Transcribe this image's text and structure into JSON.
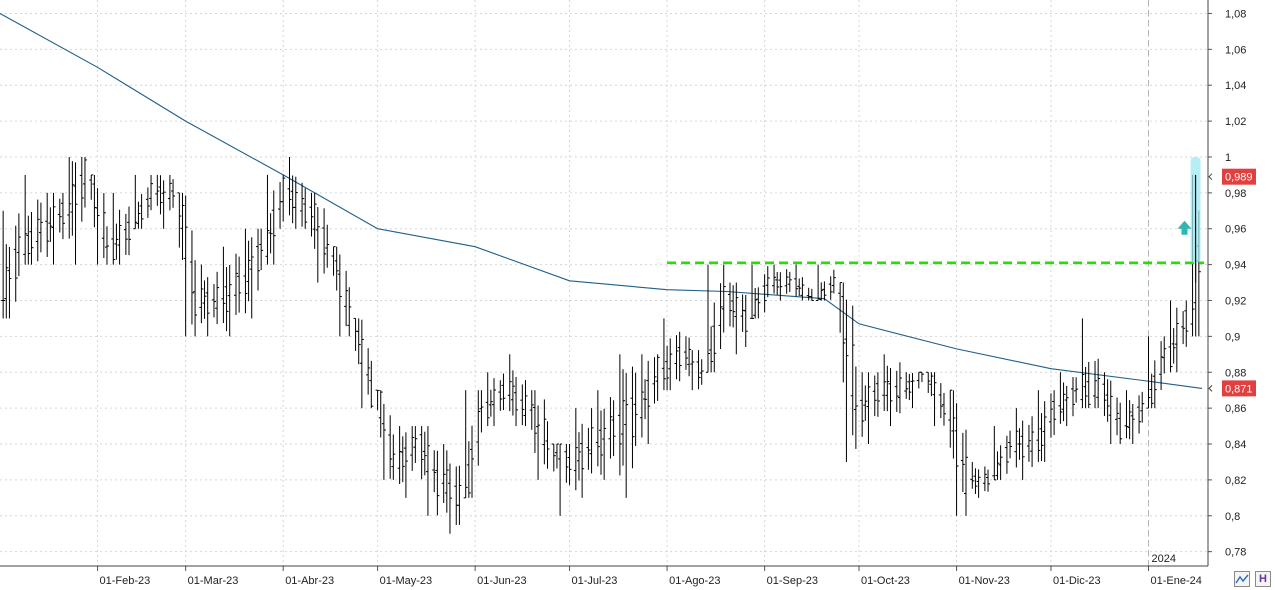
{
  "chart_data": {
    "type": "ohlc",
    "title": "",
    "xlabel": "",
    "ylabel": "",
    "ylim": [
      0.77,
      1.09
    ],
    "y_ticks": [
      "0,78",
      "0,8",
      "0,82",
      "0,84",
      "0,86",
      "0,88",
      "0,9",
      "0,92",
      "0,94",
      "0,96",
      "0,98",
      "1",
      "1,02",
      "1,04",
      "1,06",
      "1,08"
    ],
    "x_ticks": [
      "01-Feb-23",
      "01-Mar-23",
      "01-Abr-23",
      "01-May-23",
      "01-Jun-23",
      "01-Jul-23",
      "01-Ago-23",
      "01-Sep-23",
      "01-Oct-23",
      "01-Nov-23",
      "01-Dic-23",
      "01-Ene-24"
    ],
    "x_range": [
      "2023-01-01",
      "2024-01-18"
    ],
    "year_marker": "2024",
    "price_bars": [
      [
        "2023-01-02",
        0.92,
        0.97,
        0.91,
        0.95
      ],
      [
        "2023-01-09",
        0.95,
        0.99,
        0.94,
        0.96
      ],
      [
        "2023-01-16",
        0.96,
        0.98,
        0.94,
        0.97
      ],
      [
        "2023-01-23",
        0.97,
        1.0,
        0.94,
        0.99
      ],
      [
        "2023-01-30",
        0.99,
        0.99,
        0.94,
        0.95
      ],
      [
        "2023-02-06",
        0.95,
        0.98,
        0.94,
        0.96
      ],
      [
        "2023-02-13",
        0.96,
        0.99,
        0.96,
        0.98
      ],
      [
        "2023-02-20",
        0.98,
        0.99,
        0.96,
        0.98
      ],
      [
        "2023-02-27",
        0.98,
        0.98,
        0.9,
        0.92
      ],
      [
        "2023-03-06",
        0.92,
        0.94,
        0.9,
        0.92
      ],
      [
        "2023-03-13",
        0.92,
        0.95,
        0.9,
        0.93
      ],
      [
        "2023-03-20",
        0.93,
        0.96,
        0.91,
        0.95
      ],
      [
        "2023-03-27",
        0.95,
        0.99,
        0.94,
        0.98
      ],
      [
        "2023-04-03",
        0.98,
        1.0,
        0.96,
        0.97
      ],
      [
        "2023-04-10",
        0.97,
        0.98,
        0.93,
        0.95
      ],
      [
        "2023-04-17",
        0.95,
        0.95,
        0.9,
        0.91
      ],
      [
        "2023-04-24",
        0.91,
        0.91,
        0.86,
        0.87
      ],
      [
        "2023-05-01",
        0.87,
        0.87,
        0.82,
        0.83
      ],
      [
        "2023-05-08",
        0.83,
        0.85,
        0.81,
        0.84
      ],
      [
        "2023-05-15",
        0.84,
        0.85,
        0.8,
        0.82
      ],
      [
        "2023-05-22",
        0.82,
        0.84,
        0.79,
        0.81
      ],
      [
        "2023-05-29",
        0.81,
        0.87,
        0.81,
        0.86
      ],
      [
        "2023-06-05",
        0.86,
        0.88,
        0.85,
        0.87
      ],
      [
        "2023-06-12",
        0.87,
        0.89,
        0.85,
        0.86
      ],
      [
        "2023-06-19",
        0.86,
        0.87,
        0.82,
        0.84
      ],
      [
        "2023-06-26",
        0.84,
        0.84,
        0.8,
        0.83
      ],
      [
        "2023-07-03",
        0.83,
        0.86,
        0.81,
        0.84
      ],
      [
        "2023-07-10",
        0.84,
        0.87,
        0.82,
        0.85
      ],
      [
        "2023-07-17",
        0.85,
        0.89,
        0.81,
        0.86
      ],
      [
        "2023-07-24",
        0.86,
        0.89,
        0.84,
        0.88
      ],
      [
        "2023-07-31",
        0.88,
        0.91,
        0.87,
        0.89
      ],
      [
        "2023-08-07",
        0.89,
        0.9,
        0.87,
        0.88
      ],
      [
        "2023-08-14",
        0.88,
        0.94,
        0.88,
        0.92
      ],
      [
        "2023-08-21",
        0.92,
        0.93,
        0.89,
        0.91
      ],
      [
        "2023-08-28",
        0.91,
        0.94,
        0.91,
        0.93
      ],
      [
        "2023-09-04",
        0.93,
        0.94,
        0.92,
        0.93
      ],
      [
        "2023-09-11",
        0.93,
        0.94,
        0.92,
        0.92
      ],
      [
        "2023-09-18",
        0.92,
        0.94,
        0.92,
        0.93
      ],
      [
        "2023-09-25",
        0.93,
        0.93,
        0.83,
        0.86
      ],
      [
        "2023-10-02",
        0.86,
        0.88,
        0.84,
        0.87
      ],
      [
        "2023-10-09",
        0.87,
        0.89,
        0.85,
        0.87
      ],
      [
        "2023-10-16",
        0.87,
        0.88,
        0.86,
        0.88
      ],
      [
        "2023-10-23",
        0.88,
        0.88,
        0.85,
        0.86
      ],
      [
        "2023-10-30",
        0.86,
        0.87,
        0.8,
        0.82
      ],
      [
        "2023-11-06",
        0.82,
        0.83,
        0.81,
        0.82
      ],
      [
        "2023-11-13",
        0.82,
        0.85,
        0.82,
        0.84
      ],
      [
        "2023-11-20",
        0.84,
        0.86,
        0.82,
        0.84
      ],
      [
        "2023-11-27",
        0.84,
        0.87,
        0.83,
        0.86
      ],
      [
        "2023-12-04",
        0.86,
        0.88,
        0.85,
        0.87
      ],
      [
        "2023-12-11",
        0.87,
        0.91,
        0.86,
        0.87
      ],
      [
        "2023-12-18",
        0.87,
        0.88,
        0.84,
        0.85
      ],
      [
        "2023-12-25",
        0.85,
        0.87,
        0.84,
        0.86
      ],
      [
        "2024-01-01",
        0.86,
        0.9,
        0.86,
        0.89
      ],
      [
        "2024-01-08",
        0.89,
        0.92,
        0.88,
        0.91
      ],
      [
        "2024-01-15",
        0.91,
        0.99,
        0.9,
        0.98
      ]
    ],
    "moving_average": [
      [
        "2023-01-01",
        1.08
      ],
      [
        "2023-02-01",
        1.05
      ],
      [
        "2023-03-01",
        1.02
      ],
      [
        "2023-04-01",
        0.99
      ],
      [
        "2023-05-01",
        0.96
      ],
      [
        "2023-06-01",
        0.95
      ],
      [
        "2023-07-01",
        0.931
      ],
      [
        "2023-08-01",
        0.926
      ],
      [
        "2023-08-20",
        0.925
      ],
      [
        "2023-09-20",
        0.921
      ],
      [
        "2023-10-01",
        0.907
      ],
      [
        "2023-11-01",
        0.893
      ],
      [
        "2023-12-01",
        0.882
      ],
      [
        "2024-01-01",
        0.875
      ],
      [
        "2024-01-18",
        0.871
      ]
    ],
    "resistance_level": 0.941,
    "resistance_start": "2023-08-01",
    "last_price_tag": "0,989",
    "ma_price_tag": "0,871",
    "colors": {
      "bars": "#000000",
      "moving_average": "#1f5f8b",
      "resistance": "#22e000",
      "price_tag": "#e04040",
      "arrow": "#2fb7b0",
      "highlight": "#9ee8f0",
      "grid": "#d6d6d6"
    }
  },
  "toolbar": {
    "zoom_icon": "zigzag-icon",
    "save_icon": "save-icon",
    "save_glyph": "H"
  }
}
